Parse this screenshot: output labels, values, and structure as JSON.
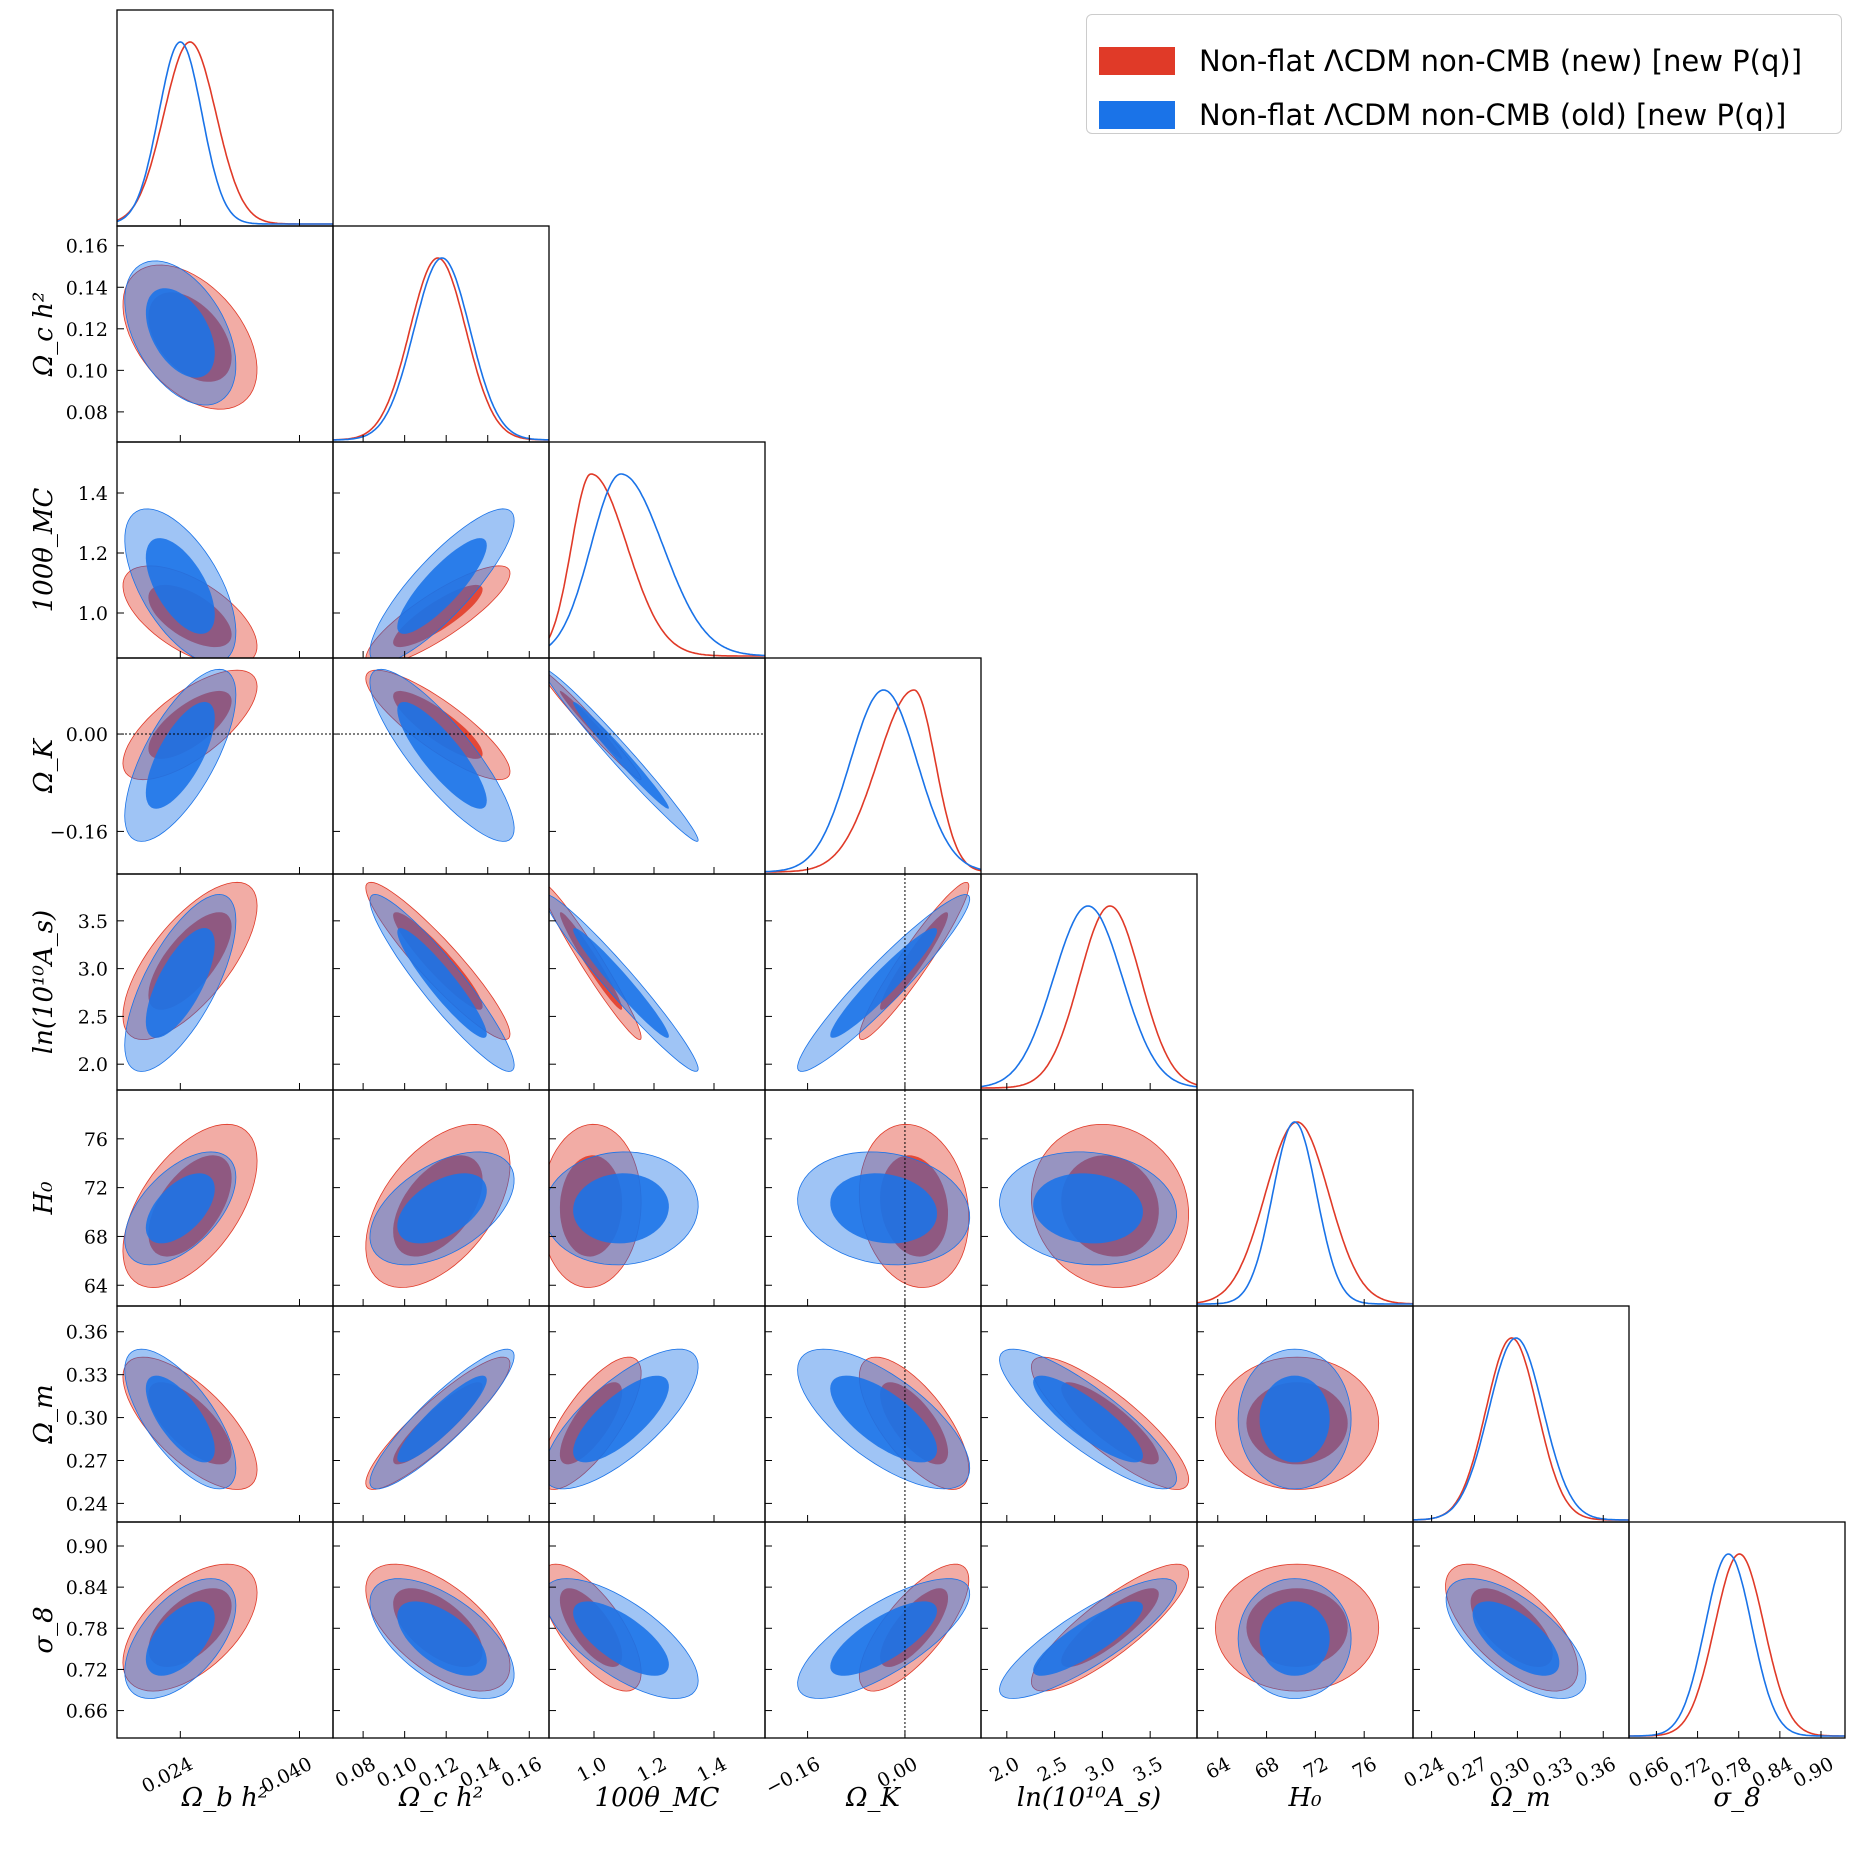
{
  "legend": {
    "new_label": "Non-flat ΛCDM non-CMB (new) [new P(q)]",
    "old_label": "Non-flat ΛCDM non-CMB (old) [new P(q)]",
    "new_color": "#e03a28",
    "old_color": "#1a73e8"
  },
  "chart_data": {
    "type": "triangle-corner",
    "params": [
      {
        "key": "obh2",
        "label": "Ω_b h²",
        "range": [
          0.0155,
          0.0445
        ],
        "ticks": [
          0.024,
          0.04
        ],
        "tick_labels": [
          "0.024",
          "0.040"
        ],
        "mean_new": 0.0253,
        "sd_new": 0.0035,
        "mean_old": 0.024,
        "sd_old": 0.0029
      },
      {
        "key": "och2",
        "label": "Ω_c h²",
        "range": [
          0.0655,
          0.1695
        ],
        "ticks": [
          0.08,
          0.1,
          0.12,
          0.14,
          0.16
        ],
        "tick_labels": [
          "0.08",
          "0.10",
          "0.12",
          "0.14",
          "0.16"
        ],
        "mean_new": 0.116,
        "sd_new": 0.0135,
        "mean_old": 0.118,
        "sd_old": 0.0135
      },
      {
        "key": "theta",
        "label": "100θ_MC",
        "range": [
          0.85,
          1.57
        ],
        "ticks": [
          1.0,
          1.2,
          1.4
        ],
        "tick_labels": [
          "1.0",
          "1.2",
          "1.4"
        ],
        "mean_new": 0.99,
        "sd_new": 0.065,
        "sd_new_right": 0.12,
        "mean_old": 1.09,
        "sd_old": 0.1,
        "sd_old_right": 0.14
      },
      {
        "key": "ok",
        "label": "Ω_K",
        "range": [
          -0.23,
          0.125
        ],
        "ticks": [
          -0.16,
          0.0
        ],
        "tick_labels": [
          "−0.16",
          "0.00"
        ],
        "mean_new": 0.015,
        "sd_new_left": 0.06,
        "sd_new": 0.035,
        "mean_old": -0.035,
        "sd_old": 0.055
      },
      {
        "key": "las",
        "label": "ln(10¹⁰A_s)",
        "range": [
          1.73,
          3.99
        ],
        "ticks": [
          2.0,
          2.5,
          3.0,
          3.5
        ],
        "tick_labels": [
          "2.0",
          "2.5",
          "3.0",
          "3.5"
        ],
        "mean_new": 3.08,
        "sd_new": 0.32,
        "mean_old": 2.85,
        "sd_old": 0.36
      },
      {
        "key": "h0",
        "label": "H₀",
        "range": [
          62.3,
          80.0
        ],
        "ticks": [
          64,
          68,
          72,
          76
        ],
        "tick_labels": [
          "64",
          "68",
          "72",
          "76"
        ],
        "mean_new": 70.5,
        "sd_new": 2.6,
        "mean_old": 70.3,
        "sd_old": 1.8
      },
      {
        "key": "om",
        "label": "Ω_m",
        "range": [
          0.227,
          0.378
        ],
        "ticks": [
          0.24,
          0.27,
          0.3,
          0.33,
          0.36
        ],
        "tick_labels": [
          "0.24",
          "0.27",
          "0.30",
          "0.33",
          "0.36"
        ],
        "mean_new": 0.296,
        "sd_new": 0.018,
        "mean_old": 0.299,
        "sd_old": 0.019
      },
      {
        "key": "s8",
        "label": "σ_8",
        "range": [
          0.62,
          0.935
        ],
        "ticks": [
          0.66,
          0.72,
          0.78,
          0.84,
          0.9
        ],
        "tick_labels": [
          "0.66",
          "0.72",
          "0.78",
          "0.84",
          "0.90"
        ],
        "mean_new": 0.781,
        "sd_new": 0.036,
        "mean_old": 0.765,
        "sd_old": 0.034
      }
    ],
    "correlations": [
      {
        "i": 1,
        "j": 0,
        "rho": -0.45
      },
      {
        "i": 2,
        "j": 0,
        "rho": -0.6
      },
      {
        "i": 2,
        "j": 1,
        "rho": 0.85
      },
      {
        "i": 3,
        "j": 0,
        "rho": 0.7
      },
      {
        "i": 3,
        "j": 1,
        "rho": -0.85
      },
      {
        "i": 3,
        "j": 2,
        "rho": -0.99
      },
      {
        "i": 4,
        "j": 0,
        "rho": 0.7
      },
      {
        "i": 4,
        "j": 1,
        "rho": -0.93
      },
      {
        "i": 4,
        "j": 2,
        "rho": -0.97
      },
      {
        "i": 4,
        "j": 3,
        "rho": 0.95
      },
      {
        "i": 5,
        "j": 0,
        "rho": 0.55
      },
      {
        "i": 5,
        "j": 1,
        "rho": 0.5
      },
      {
        "i": 5,
        "j": 2,
        "rho": 0.05
      },
      {
        "i": 5,
        "j": 3,
        "rho": -0.15
      },
      {
        "i": 5,
        "j": 4,
        "rho": -0.1
      },
      {
        "i": 6,
        "j": 0,
        "rho": -0.7
      },
      {
        "i": 6,
        "j": 1,
        "rho": 0.9
      },
      {
        "i": 6,
        "j": 2,
        "rho": 0.75
      },
      {
        "i": 6,
        "j": 3,
        "rho": -0.7
      },
      {
        "i": 6,
        "j": 4,
        "rho": -0.85
      },
      {
        "i": 6,
        "j": 5,
        "rho": 0.0
      },
      {
        "i": 7,
        "j": 0,
        "rho": 0.55
      },
      {
        "i": 7,
        "j": 1,
        "rho": -0.6
      },
      {
        "i": 7,
        "j": 2,
        "rho": -0.7
      },
      {
        "i": 7,
        "j": 3,
        "rho": 0.75
      },
      {
        "i": 7,
        "j": 4,
        "rho": 0.85
      },
      {
        "i": 7,
        "j": 5,
        "rho": 0.0
      },
      {
        "i": 7,
        "j": 6,
        "rho": -0.65
      }
    ],
    "reference_lines": [
      {
        "param": "ok",
        "value": 0.0,
        "style": "dotted"
      }
    ],
    "series": [
      {
        "name": "Non-flat ΛCDM non-CMB (new) [new P(q)]",
        "color": "#e03a28"
      },
      {
        "name": "Non-flat ΛCDM non-CMB (old) [new P(q)]",
        "color": "#1a73e8"
      }
    ]
  }
}
